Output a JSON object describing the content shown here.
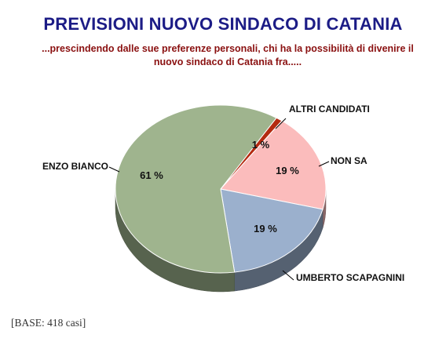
{
  "chart_data": {
    "type": "pie",
    "title": "PREVISIONI NUOVO SINDACO DI CATANIA",
    "subtitle_line1": "...prescindendo dalle sue preferenze personali, chi ha la possibilità di divenire il",
    "subtitle_line2": "nuovo sindaco di Catania fra.....",
    "slices": [
      {
        "label": "ALTRI CANDIDATI",
        "value": 1,
        "value_label": "1 %",
        "color": "#b42a10"
      },
      {
        "label": "NON SA",
        "value": 19,
        "value_label": "19 %",
        "color": "#fbbcbc"
      },
      {
        "label": "UMBERTO SCAPAGNINI",
        "value": 19,
        "value_label": "19 %",
        "color": "#9bb0cd"
      },
      {
        "label": "ENZO BIANCO",
        "value": 61,
        "value_label": "61 %",
        "color": "#9fb48e"
      }
    ]
  },
  "footnote": "[BASE: 418 casi]"
}
